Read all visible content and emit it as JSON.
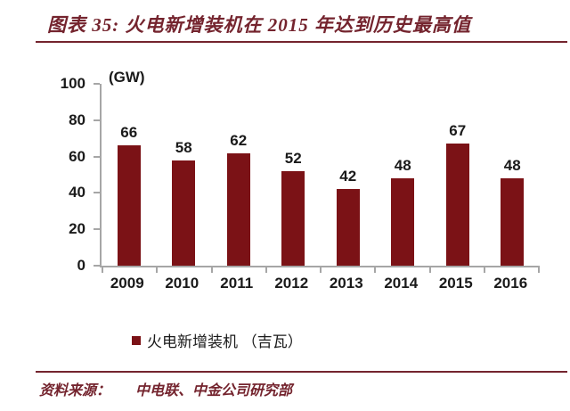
{
  "page": {
    "title": "图表 35: 火电新增装机在 2015 年达到历史最高值",
    "source_label": "资料来源：",
    "source_text": "中电联、中金公司研究部"
  },
  "chart_data": {
    "type": "bar",
    "title": "火电新增装机在 2015 年达到历史最高值",
    "unit_label": "(GW)",
    "categories": [
      "2009",
      "2010",
      "2011",
      "2012",
      "2013",
      "2014",
      "2015",
      "2016"
    ],
    "values": [
      66,
      58,
      62,
      52,
      42,
      48,
      67,
      48
    ],
    "xlabel": "",
    "ylabel": "(GW)",
    "ylim": [
      0,
      100
    ],
    "yticks": [
      0,
      20,
      40,
      60,
      80,
      100
    ],
    "grid": false,
    "legend_position": "bottom",
    "legend": [
      {
        "label": "火电新增装机 （吉瓦）",
        "color": "#7B1216"
      }
    ],
    "bar_color": "#7B1216",
    "axis_color": "#A6A6A6",
    "accent_color": "#74242E",
    "value_label_color": "#1A1A1A"
  }
}
